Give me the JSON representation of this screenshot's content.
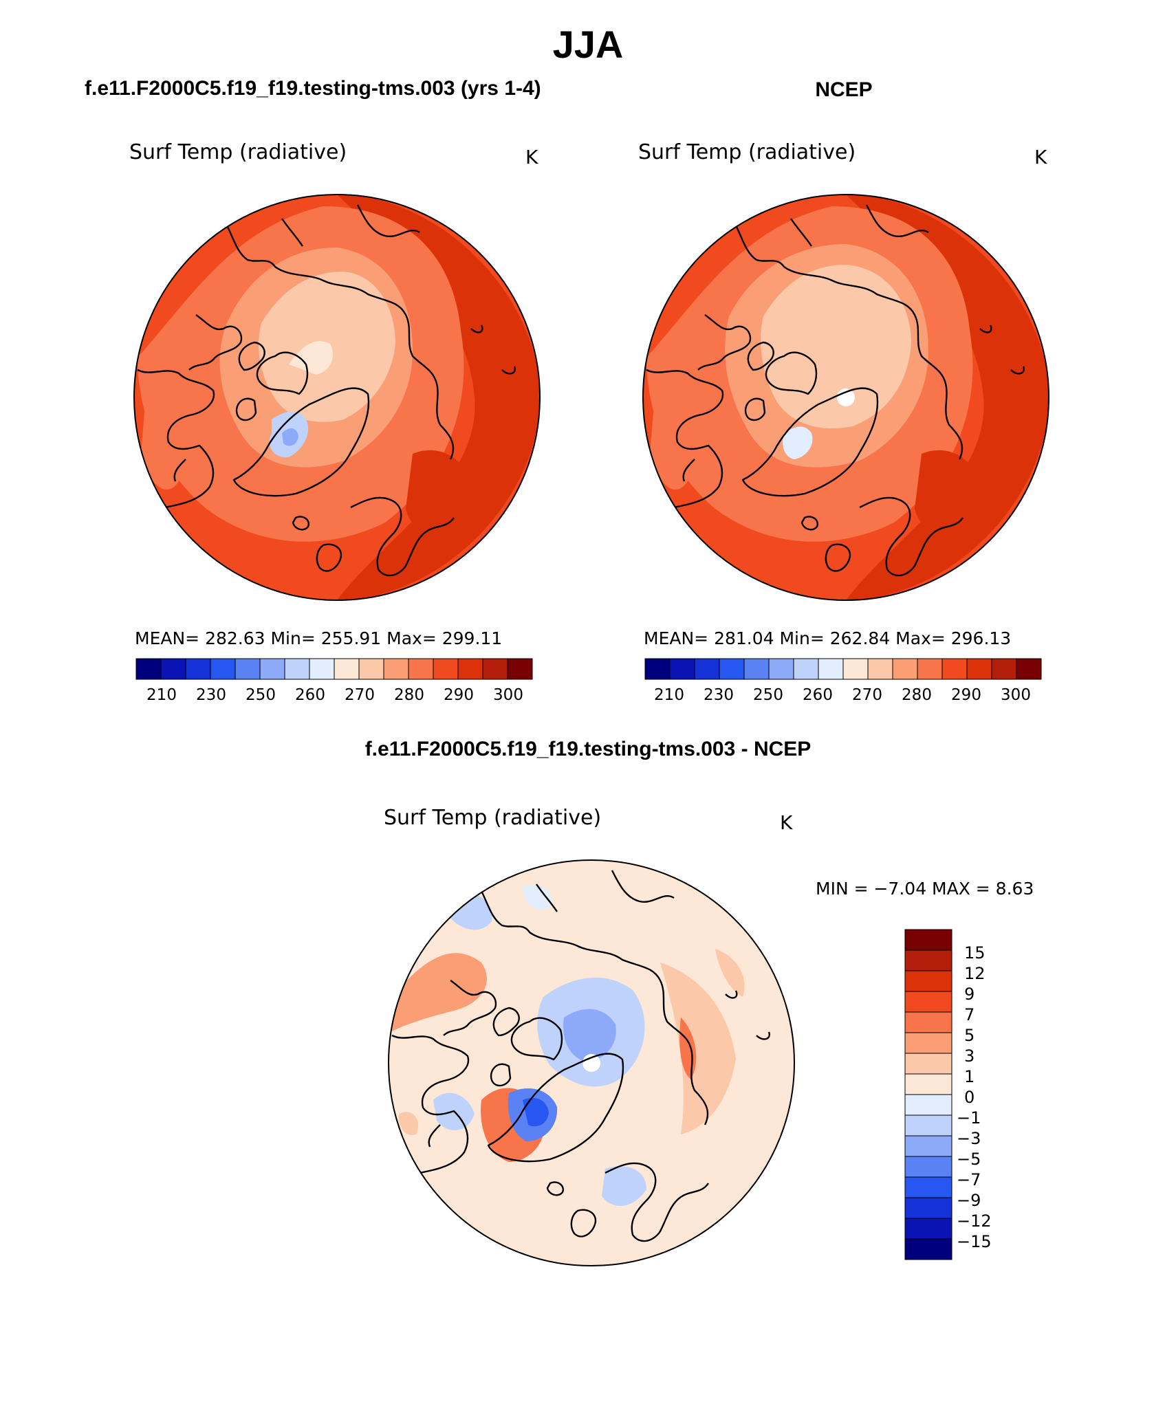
{
  "figure": {
    "title": "JJA",
    "colors": {
      "scale": [
        "#00007f",
        "#0a14b4",
        "#1432d8",
        "#2856f0",
        "#5a82f5",
        "#8caaf8",
        "#bed2fc",
        "#e2eefd",
        "#fde8d8",
        "#fcc8aa",
        "#fa9e76",
        "#f8744a",
        "#f04a1e",
        "#dc320a",
        "#b41e0a",
        "#780000"
      ],
      "coastline": "#000000"
    }
  },
  "panels": [
    {
      "id": "model",
      "heading": "f.e11.F2000C5.f19_f19.testing-tms.003 (yrs 1-4)",
      "variable": "Surf Temp (radiative)",
      "units": "K",
      "stats": "MEAN= 282.63   Min= 255.91   Max= 299.11",
      "colorbar_ticks": [
        "210",
        "230",
        "250",
        "260",
        "270",
        "280",
        "290",
        "300"
      ]
    },
    {
      "id": "obs",
      "heading": "NCEP",
      "variable": "Surf Temp (radiative)",
      "units": "K",
      "stats": "MEAN= 281.04   Min= 262.84   Max= 296.13",
      "colorbar_ticks": [
        "210",
        "230",
        "250",
        "260",
        "270",
        "280",
        "290",
        "300"
      ]
    }
  ],
  "difference": {
    "heading": "f.e11.F2000C5.f19_f19.testing-tms.003 - NCEP",
    "variable": "Surf Temp (radiative)",
    "units": "K",
    "minmax": "MIN =   −7.04  MAX =     8.63",
    "colorbar_ticks": [
      "15",
      "12",
      "9",
      "7",
      "5",
      "3",
      "1",
      "0",
      "−1",
      "−3",
      "−5",
      "−7",
      "−9",
      "−12",
      "−15"
    ]
  }
}
